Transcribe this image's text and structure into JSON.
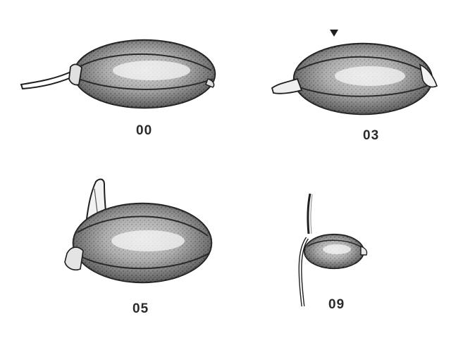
{
  "stages": [
    {
      "label": "00"
    },
    {
      "label": "03"
    },
    {
      "label": "05"
    },
    {
      "label": "09"
    }
  ],
  "colors": {
    "ink": "#1f1f1f",
    "shade": "#5a5a5a",
    "highlight": "#f4f4f4",
    "paper": "#ffffff"
  }
}
